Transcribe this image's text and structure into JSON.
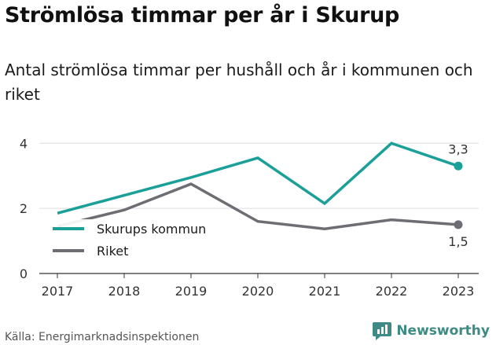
{
  "header": {
    "title": "Strömlösa timmar per år i Skurup",
    "subtitle": "Antal strömlösa timmar per hushåll och år i kommunen och riket"
  },
  "chart_data": {
    "type": "line",
    "x": [
      "2017",
      "2018",
      "2019",
      "2020",
      "2021",
      "2022",
      "2023"
    ],
    "series": [
      {
        "name": "Skurups kommun",
        "color": "#1aa098",
        "values": [
          1.85,
          2.4,
          2.95,
          3.55,
          2.15,
          4.0,
          3.3
        ],
        "end_label": "3,3"
      },
      {
        "name": "Riket",
        "color": "#6e6d74",
        "values": [
          1.45,
          1.95,
          2.75,
          1.6,
          1.37,
          1.65,
          1.5
        ],
        "end_label": "1,5"
      }
    ],
    "y_ticks": [
      "0",
      "2",
      "4"
    ],
    "ylim": [
      0,
      4.2
    ],
    "grid": true,
    "legend_position": "inside-left"
  },
  "footer": {
    "source": "Källa: Energimarknadsinspektionen",
    "brand": "Newsworthy",
    "brand_color": "#3d8b84"
  }
}
